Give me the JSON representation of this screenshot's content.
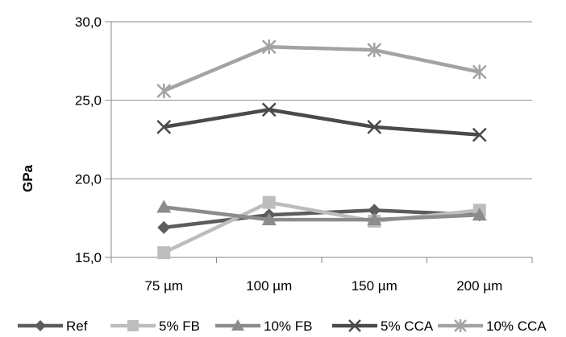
{
  "chart_data": {
    "type": "line",
    "title": "",
    "xlabel": "",
    "ylabel": "GPa",
    "categories": [
      "75 µm",
      "100 µm",
      "150 µm",
      "200 µm"
    ],
    "y_tick_labels": [
      "15,0",
      "20,0",
      "25,0",
      "30,0"
    ],
    "y_ticks": [
      15,
      20,
      25,
      30
    ],
    "ylim": [
      15,
      30
    ],
    "grid": "horizontal major gridlines",
    "legend_position": "bottom",
    "series": [
      {
        "name": "Ref",
        "values": [
          16.9,
          17.7,
          18.0,
          17.7
        ],
        "marker": "diamond",
        "color": "#5c5c5c"
      },
      {
        "name": "5% FB",
        "values": [
          15.3,
          18.5,
          17.3,
          18.0
        ],
        "marker": "square",
        "color": "#bdbdbd"
      },
      {
        "name": "10% FB",
        "values": [
          18.2,
          17.4,
          17.4,
          17.7
        ],
        "marker": "triangle",
        "color": "#8c8c8c"
      },
      {
        "name": "5% CCA",
        "values": [
          23.3,
          24.4,
          23.3,
          22.8
        ],
        "marker": "x",
        "color": "#4a4a4a"
      },
      {
        "name": "10% CCA",
        "values": [
          25.6,
          28.4,
          28.2,
          26.8
        ],
        "marker": "star",
        "color": "#a3a3a3"
      }
    ]
  }
}
